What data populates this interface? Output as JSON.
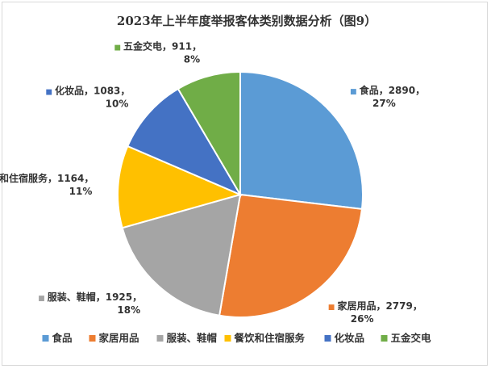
{
  "chart_data": {
    "type": "pie",
    "title": "2023年上半年度举报客体类别数据分析（图9）",
    "legend_position": "bottom",
    "slices": [
      {
        "label": "食品",
        "value": 2890,
        "percent": "27%",
        "color": "#5b9bd5"
      },
      {
        "label": "家居用品",
        "value": 2779,
        "percent": "26%",
        "color": "#ed7d31"
      },
      {
        "label": "服装、鞋帽",
        "value": 1925,
        "percent": "18%",
        "color": "#a5a5a5"
      },
      {
        "label": "餐饮和住宿服务",
        "value": 1164,
        "percent": "11%",
        "color": "#ffc000"
      },
      {
        "label": "化妆品",
        "value": 1083,
        "percent": "10%",
        "color": "#4472c4"
      },
      {
        "label": "五金交电",
        "value": 911,
        "percent": "8%",
        "color": "#70ad47"
      }
    ]
  }
}
